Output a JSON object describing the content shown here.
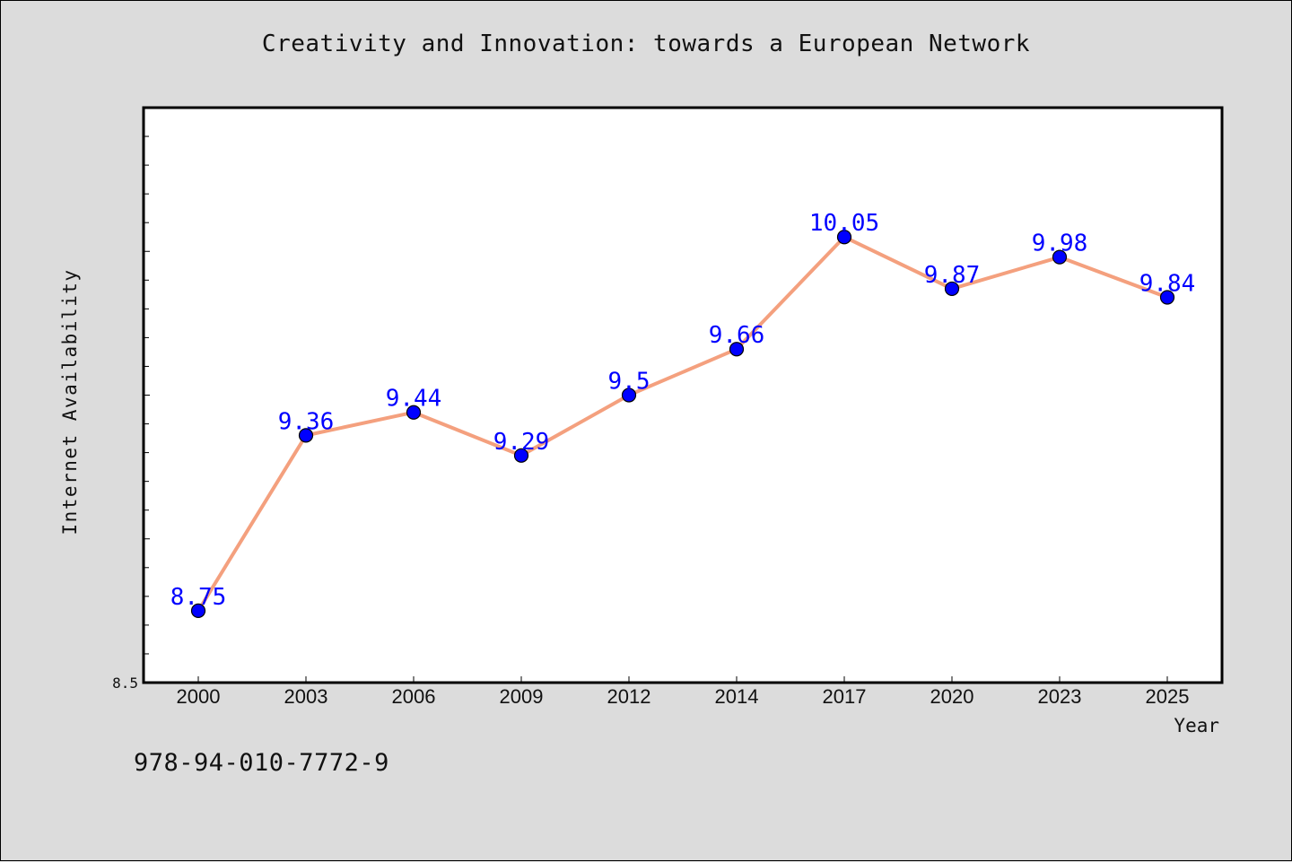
{
  "title": "Creativity and Innovation: towards a European Network",
  "footer_text": "978-94-010-7772-9",
  "chart_data": {
    "type": "line",
    "title": "Creativity and Innovation: towards a European Network",
    "xlabel": "Year",
    "ylabel": "Internet Availability",
    "categories": [
      "2000",
      "2003",
      "2006",
      "2009",
      "2012",
      "2014",
      "2017",
      "2020",
      "2023",
      "2025"
    ],
    "series": [
      {
        "values": [
          8.75,
          9.36,
          9.44,
          9.29,
          9.5,
          9.66,
          10.05,
          9.87,
          9.98,
          9.84
        ],
        "data_labels": [
          "8.75",
          "9.36",
          "9.44",
          "9.29",
          "9.5",
          "9.66",
          "10.05",
          "9.87",
          "9.98",
          "9.84"
        ],
        "line_color": "#f4a07e",
        "marker_color": "#0000ff"
      }
    ],
    "ylim": [
      8.5,
      10.5
    ],
    "y_tick_labels": [
      "8.5"
    ],
    "y_minor_step": 0.1,
    "grid": false,
    "legend": "none"
  }
}
